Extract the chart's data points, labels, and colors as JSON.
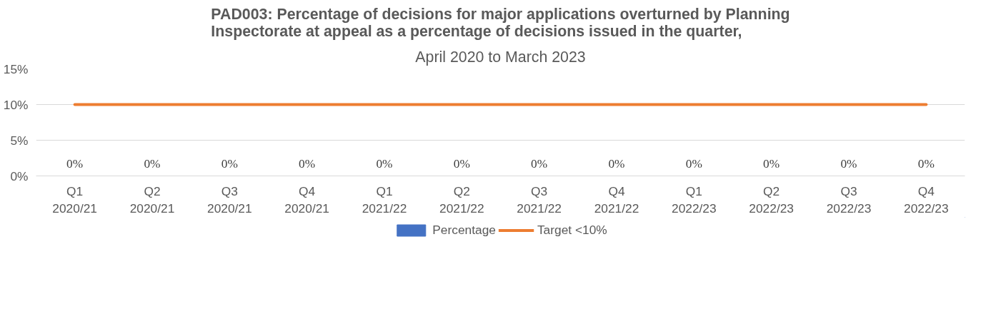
{
  "chart_data": {
    "type": "bar",
    "title": "PAD003: Percentage of decisions for major applications overturned by Planning\nInspectorate at appeal as a percentage of decisions issued in the quarter,",
    "subtitle": "April 2020 to March 2023",
    "categories": [
      "Q1\n2020/21",
      "Q2\n2020/21",
      "Q3\n2020/21",
      "Q4\n2020/21",
      "Q1\n2021/22",
      "Q2\n2021/22",
      "Q3\n2021/22",
      "Q4\n2021/22",
      "Q1\n2022/23",
      "Q2\n2022/23",
      "Q3\n2022/23",
      "Q4\n2022/23"
    ],
    "series": [
      {
        "name": "Percentage",
        "type": "bar",
        "color": "#4472c4",
        "values": [
          0,
          0,
          0,
          0,
          0,
          0,
          0,
          0,
          0,
          0,
          0,
          0
        ],
        "value_labels": [
          "0%",
          "0%",
          "0%",
          "0%",
          "0%",
          "0%",
          "0%",
          "0%",
          "0%",
          "0%",
          "0%",
          "0%"
        ]
      },
      {
        "name": "Target <10%",
        "type": "line",
        "color": "#ed7d31",
        "values": [
          10,
          10,
          10,
          10,
          10,
          10,
          10,
          10,
          10,
          10,
          10,
          10
        ]
      }
    ],
    "ylim": [
      0,
      15
    ],
    "yticks": [
      {
        "value": 0,
        "label": "0%"
      },
      {
        "value": 5,
        "label": "5%"
      },
      {
        "value": 10,
        "label": "10%"
      },
      {
        "value": 15,
        "label": "15%"
      }
    ],
    "grid": "y",
    "legend": "bottom",
    "marker": "none"
  }
}
